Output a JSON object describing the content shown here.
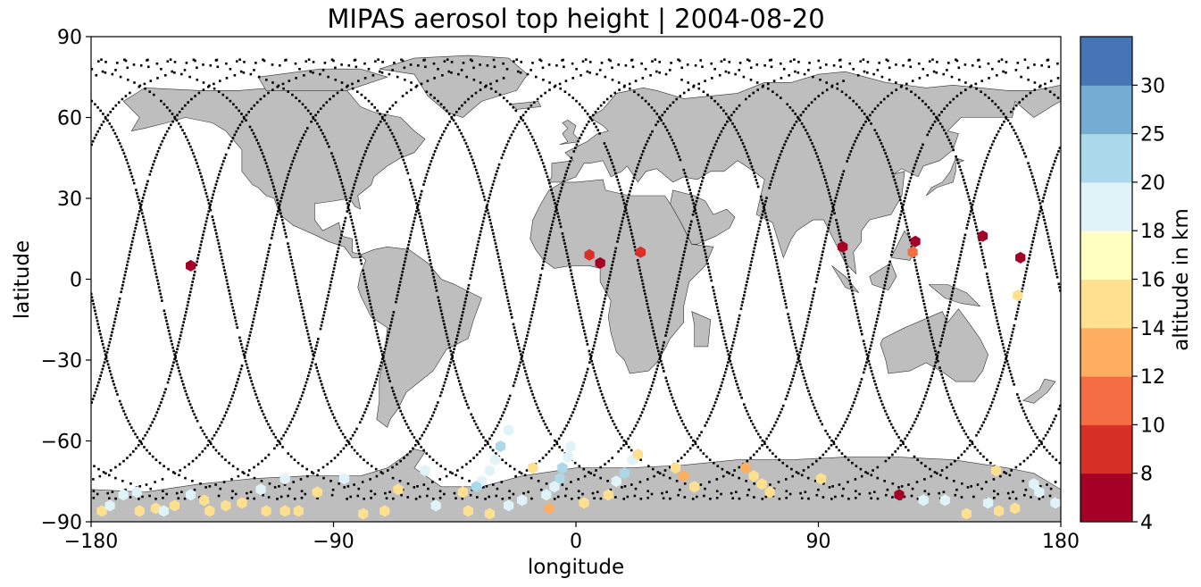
{
  "title": "MIPAS aerosol top height | 2004-08-20",
  "xlabel": "longitude",
  "ylabel": "latitude",
  "colorbar_label": "altitude in km",
  "x_ticks": [
    -180,
    -90,
    0,
    90,
    180
  ],
  "y_ticks": [
    -90,
    -60,
    -30,
    0,
    30,
    60,
    90
  ],
  "xlim": [
    -180,
    180
  ],
  "ylim": [
    -90,
    90
  ],
  "land_color": "#bebebe",
  "colorbar": {
    "levels": [
      4,
      8,
      10,
      12,
      14,
      16,
      18,
      20,
      25,
      30
    ],
    "colors": [
      "#a50026",
      "#d73027",
      "#f46d43",
      "#fdae61",
      "#fee090",
      "#ffffbf",
      "#e0f3f8",
      "#abd9e9",
      "#74add1",
      "#4575b4"
    ]
  },
  "chart_data": {
    "type": "scatter",
    "title": "MIPAS aerosol top height | 2004-08-20",
    "xlabel": "longitude",
    "ylabel": "latitude",
    "xlim": [
      -180,
      180
    ],
    "ylim": [
      -90,
      90
    ],
    "colorbar_label": "altitude in km",
    "points": [
      {
        "lon": -143,
        "lat": 5,
        "alt": 6
      },
      {
        "lon": 5,
        "lat": 9,
        "alt": 9
      },
      {
        "lon": 9,
        "lat": 6,
        "alt": 6
      },
      {
        "lon": 24,
        "lat": 10,
        "alt": 9
      },
      {
        "lon": 99,
        "lat": 12,
        "alt": 6
      },
      {
        "lon": 126,
        "lat": 14,
        "alt": 6
      },
      {
        "lon": 125,
        "lat": 10,
        "alt": 10
      },
      {
        "lon": 151,
        "lat": 16,
        "alt": 6
      },
      {
        "lon": 165,
        "lat": 8,
        "alt": 6
      },
      {
        "lon": 164,
        "lat": -6,
        "alt": 15
      },
      {
        "lon": 120,
        "lat": -80,
        "alt": 6
      },
      {
        "lon": -25,
        "lat": -56,
        "alt": 19
      },
      {
        "lon": -28,
        "lat": -62,
        "alt": 22
      },
      {
        "lon": -30,
        "lat": -67,
        "alt": 19
      },
      {
        "lon": -32,
        "lat": -71,
        "alt": 19
      },
      {
        "lon": -35,
        "lat": -75,
        "alt": 19
      },
      {
        "lon": -37,
        "lat": -77,
        "alt": 22
      },
      {
        "lon": -2,
        "lat": -62,
        "alt": 19
      },
      {
        "lon": -3,
        "lat": -66,
        "alt": 19
      },
      {
        "lon": -5,
        "lat": -70,
        "alt": 22
      },
      {
        "lon": -6,
        "lat": -74,
        "alt": 22
      },
      {
        "lon": -8,
        "lat": -77,
        "alt": 19
      },
      {
        "lon": -11,
        "lat": -80,
        "alt": 19
      },
      {
        "lon": 18,
        "lat": -72,
        "alt": 22
      },
      {
        "lon": 15,
        "lat": -75,
        "alt": 19
      },
      {
        "lon": 21,
        "lat": -67,
        "alt": 19
      },
      {
        "lon": 23,
        "lat": -65,
        "alt": 15
      },
      {
        "lon": -16,
        "lat": -70,
        "alt": 15
      },
      {
        "lon": -20,
        "lat": -82,
        "alt": 19
      },
      {
        "lon": -10,
        "lat": -85,
        "alt": 13
      },
      {
        "lon": 3,
        "lat": -83,
        "alt": 15
      },
      {
        "lon": 12,
        "lat": -80,
        "alt": 15
      },
      {
        "lon": 37,
        "lat": -70,
        "alt": 15
      },
      {
        "lon": 40,
        "lat": -73,
        "alt": 13
      },
      {
        "lon": 44,
        "lat": -77,
        "alt": 15
      },
      {
        "lon": 63,
        "lat": -70,
        "alt": 13
      },
      {
        "lon": 66,
        "lat": -73,
        "alt": 15
      },
      {
        "lon": 69,
        "lat": -76,
        "alt": 15
      },
      {
        "lon": 72,
        "lat": -79,
        "alt": 15
      },
      {
        "lon": 91,
        "lat": -74,
        "alt": 15
      },
      {
        "lon": 129,
        "lat": -82,
        "alt": 19
      },
      {
        "lon": 137,
        "lat": -82,
        "alt": 19
      },
      {
        "lon": 145,
        "lat": -87,
        "alt": 15
      },
      {
        "lon": 153,
        "lat": -83,
        "alt": 19
      },
      {
        "lon": 156,
        "lat": -71,
        "alt": 15
      },
      {
        "lon": 157,
        "lat": -86,
        "alt": 15
      },
      {
        "lon": 163,
        "lat": -85,
        "alt": 15
      },
      {
        "lon": 170,
        "lat": -76,
        "alt": 19
      },
      {
        "lon": 172,
        "lat": -79,
        "alt": 19
      },
      {
        "lon": 178,
        "lat": -83,
        "alt": 19
      },
      {
        "lon": -176,
        "lat": -86,
        "alt": 15
      },
      {
        "lon": -173,
        "lat": -84,
        "alt": 19
      },
      {
        "lon": -168,
        "lat": -80,
        "alt": 19
      },
      {
        "lon": -163,
        "lat": -79,
        "alt": 19
      },
      {
        "lon": -162,
        "lat": -86,
        "alt": 15
      },
      {
        "lon": -156,
        "lat": -85,
        "alt": 15
      },
      {
        "lon": -153,
        "lat": -86,
        "alt": 19
      },
      {
        "lon": -149,
        "lat": -84,
        "alt": 15
      },
      {
        "lon": -143,
        "lat": -80,
        "alt": 19
      },
      {
        "lon": -138,
        "lat": -82,
        "alt": 15
      },
      {
        "lon": -136,
        "lat": -86,
        "alt": 15
      },
      {
        "lon": -130,
        "lat": -84,
        "alt": 15
      },
      {
        "lon": -124,
        "lat": -83,
        "alt": 15
      },
      {
        "lon": -117,
        "lat": -78,
        "alt": 19
      },
      {
        "lon": -115,
        "lat": -86,
        "alt": 15
      },
      {
        "lon": -108,
        "lat": -86,
        "alt": 15
      },
      {
        "lon": -103,
        "lat": -86,
        "alt": 15
      },
      {
        "lon": -108,
        "lat": -74,
        "alt": 19
      },
      {
        "lon": -96,
        "lat": -79,
        "alt": 15
      },
      {
        "lon": -86,
        "lat": -74,
        "alt": 19
      },
      {
        "lon": -79,
        "lat": -87,
        "alt": 15
      },
      {
        "lon": -71,
        "lat": -86,
        "alt": 15
      },
      {
        "lon": -66,
        "lat": -78,
        "alt": 15
      },
      {
        "lon": -56,
        "lat": -71,
        "alt": 19
      },
      {
        "lon": -52,
        "lat": -84,
        "alt": 19
      },
      {
        "lon": -42,
        "lat": -79,
        "alt": 15
      },
      {
        "lon": -40,
        "lat": -86,
        "alt": 15
      },
      {
        "lon": -32,
        "lat": -87,
        "alt": 15
      },
      {
        "lon": -25,
        "lat": -84,
        "alt": 19
      }
    ]
  }
}
